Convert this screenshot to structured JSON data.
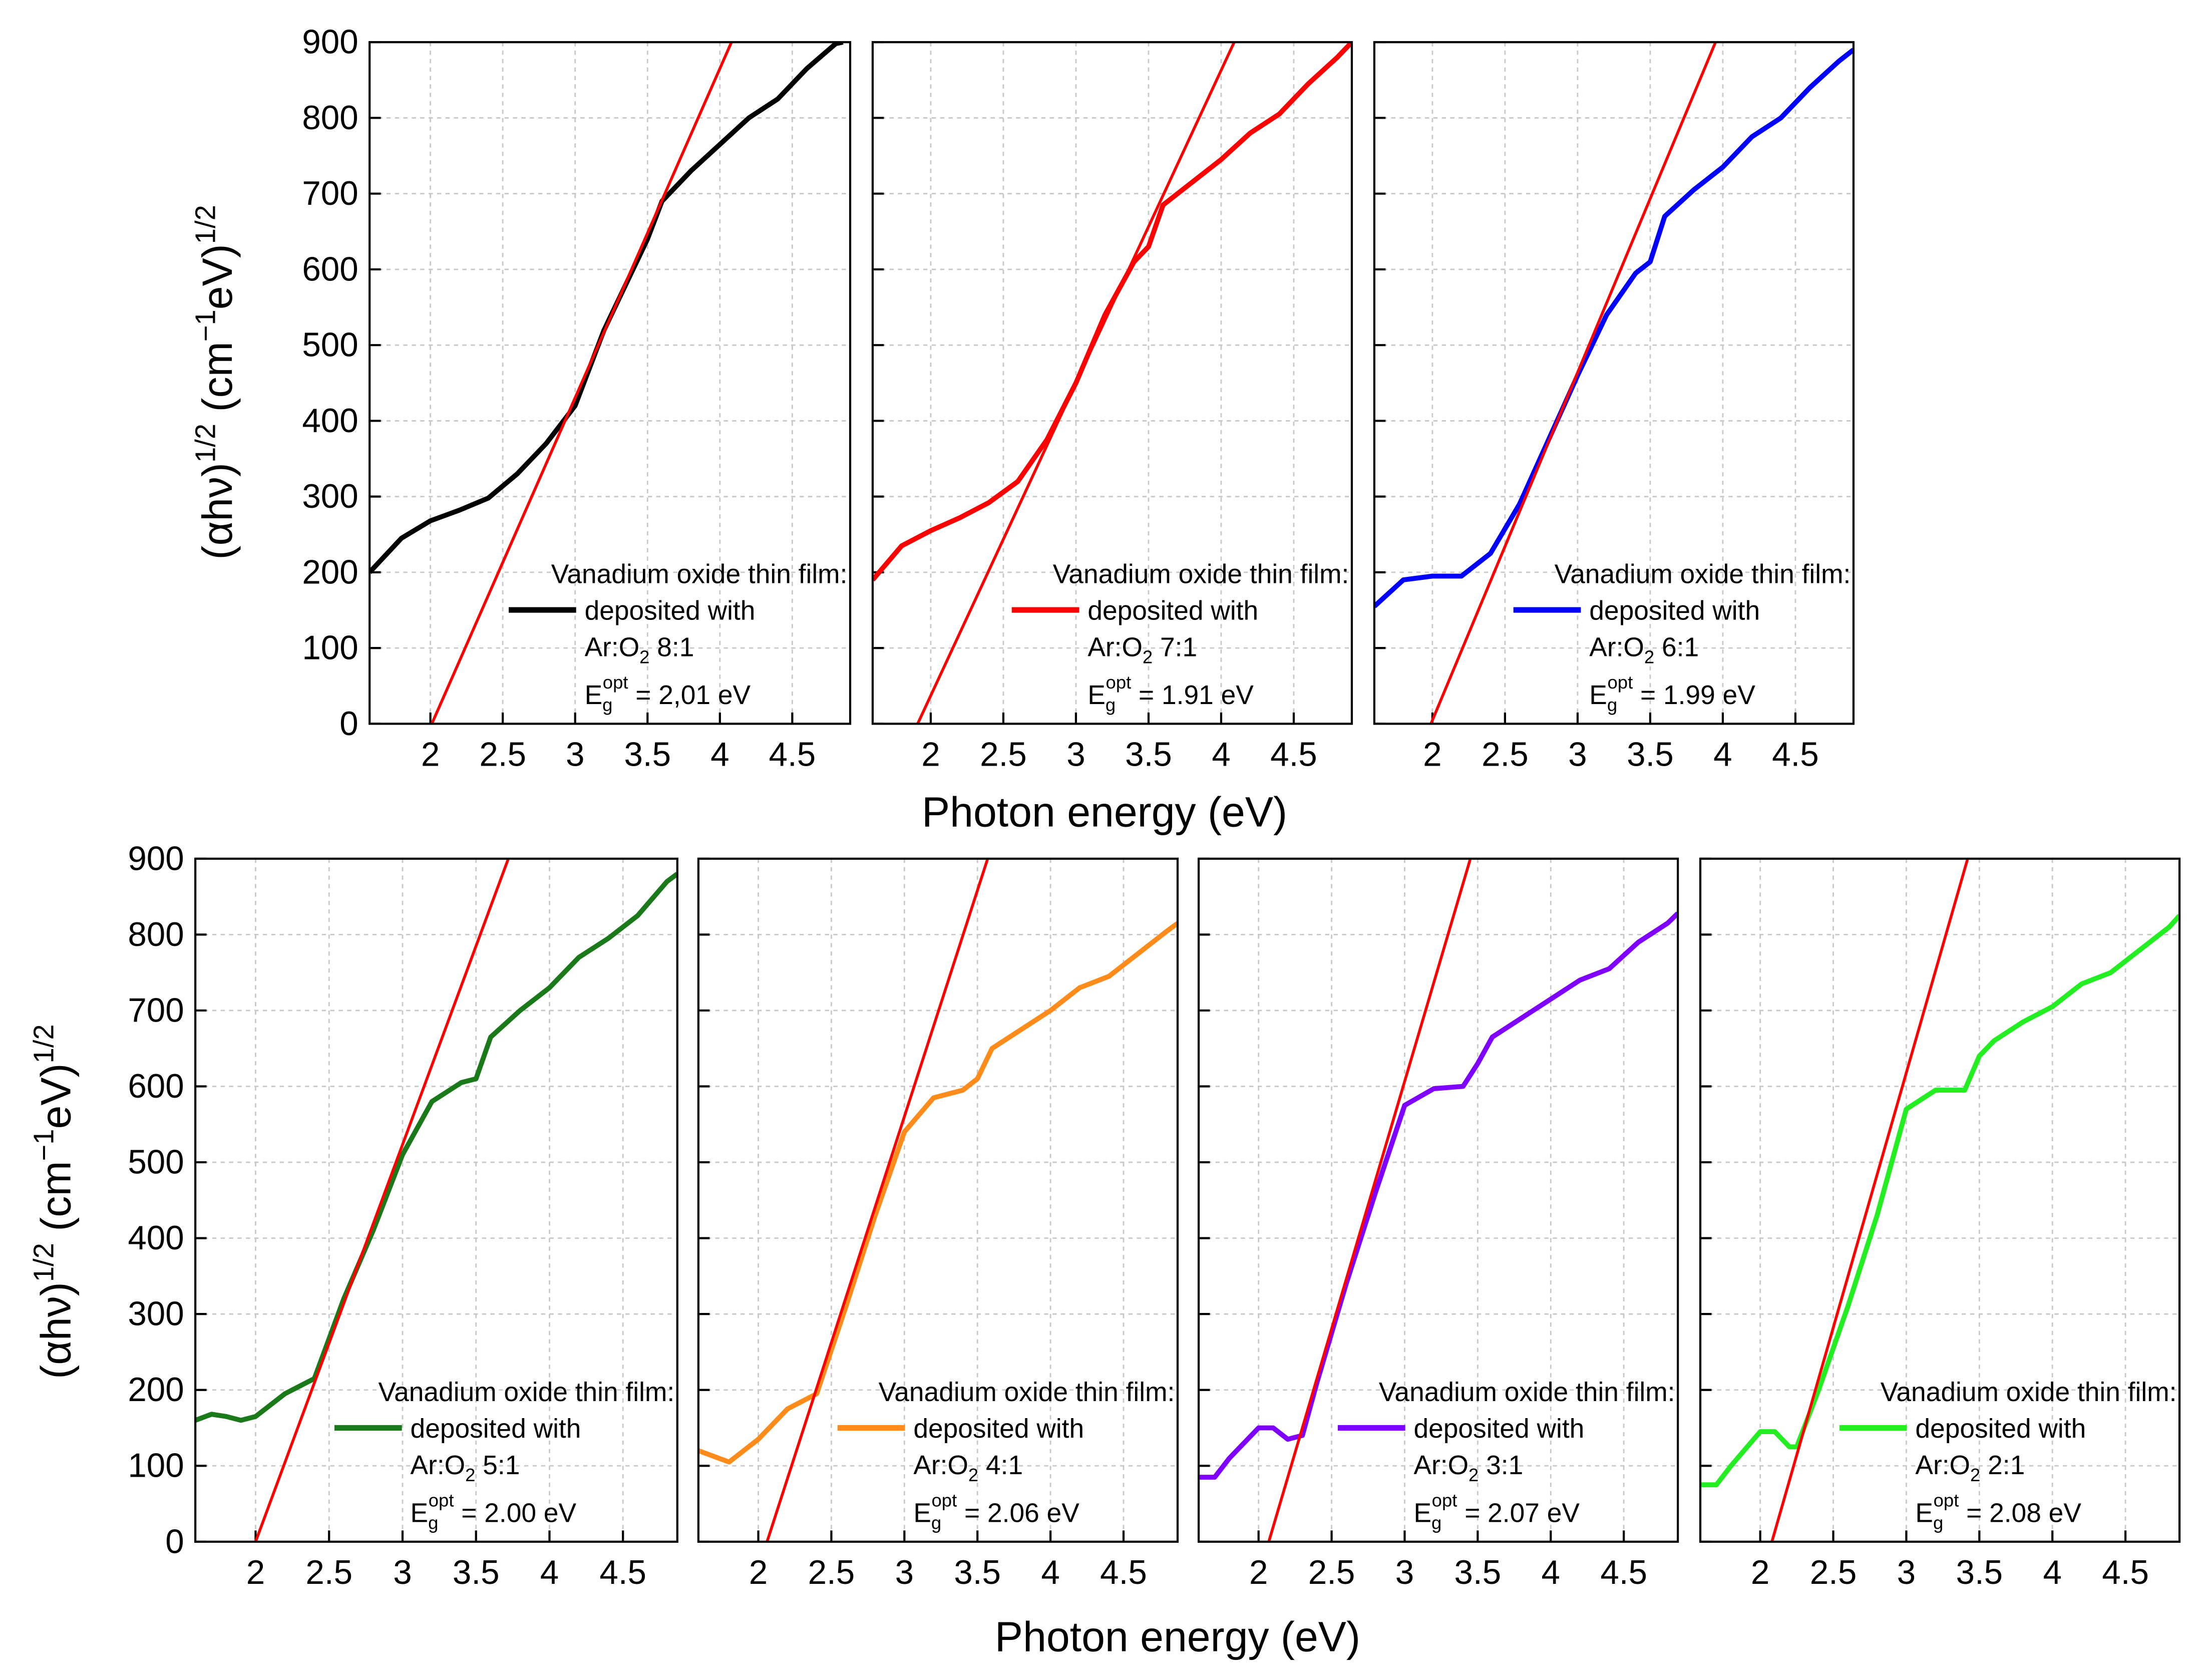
{
  "rows": [
    {
      "x_label": "Photon energy (eV)",
      "y_label": [
        "(αhν)",
        "1/2",
        " (cm",
        "−1",
        "eV)",
        "1/2"
      ]
    },
    {
      "x_label": "Photon energy (eV)",
      "y_label": [
        "(αhν)",
        "1/2",
        " (cm",
        "−1",
        "eV)",
        "1/2"
      ]
    }
  ],
  "chart_data": [
    {
      "type": "line",
      "xlim": [
        1.58,
        4.9
      ],
      "ylim": [
        0,
        900
      ],
      "xticks": [
        2,
        2.5,
        3,
        3.5,
        4,
        4.5
      ],
      "yticks": [
        0,
        100,
        200,
        300,
        400,
        500,
        600,
        700,
        800,
        900
      ],
      "ytick_labels": true,
      "grid": true,
      "series": [
        {
          "color": "#000000",
          "x": [
            1.58,
            1.8,
            2.0,
            2.2,
            2.4,
            2.6,
            2.8,
            3.0,
            3.2,
            3.4,
            3.5,
            3.6,
            3.8,
            4.0,
            4.2,
            4.4,
            4.6,
            4.8,
            4.85
          ],
          "values": [
            200,
            245,
            268,
            282,
            298,
            330,
            370,
            420,
            520,
            600,
            640,
            690,
            730,
            765,
            800,
            825,
            865,
            898,
            900
          ]
        },
        {
          "color": "#ff0000",
          "x": [
            2.01,
            4.08
          ],
          "values": [
            0,
            900
          ]
        }
      ],
      "legend_lines": [
        "Vanadium oxide thin film:",
        "deposited with",
        [
          "Ar:O",
          "2",
          " 8:1"
        ]
      ],
      "annotation": [
        "E",
        "g",
        "opt",
        " = 2,01 eV"
      ]
    },
    {
      "type": "line",
      "xlim": [
        1.6,
        4.9
      ],
      "ylim": [
        0,
        900
      ],
      "xticks": [
        2,
        2.5,
        3,
        3.5,
        4,
        4.5
      ],
      "yticks": [
        0,
        100,
        200,
        300,
        400,
        500,
        600,
        700,
        800,
        900
      ],
      "ytick_labels": false,
      "grid": true,
      "series": [
        {
          "color": "#ff0000",
          "x": [
            1.6,
            1.8,
            2.0,
            2.2,
            2.4,
            2.6,
            2.8,
            3.0,
            3.2,
            3.4,
            3.5,
            3.6,
            3.8,
            4.0,
            4.2,
            4.4,
            4.6,
            4.8,
            4.9
          ],
          "values": [
            190,
            235,
            255,
            272,
            292,
            320,
            375,
            450,
            540,
            610,
            630,
            685,
            715,
            745,
            780,
            805,
            845,
            880,
            900
          ]
        },
        {
          "color": "#ff0000",
          "x": [
            1.91,
            4.09
          ],
          "values": [
            0,
            900
          ]
        }
      ],
      "legend_lines": [
        "Vanadium oxide thin film:",
        "deposited with",
        [
          "Ar:O",
          "2",
          " 7:1"
        ]
      ],
      "annotation": [
        "E",
        "g",
        "opt",
        " = 1.91 eV"
      ]
    },
    {
      "type": "line",
      "xlim": [
        1.6,
        4.9
      ],
      "ylim": [
        0,
        900
      ],
      "xticks": [
        2,
        2.5,
        3,
        3.5,
        4,
        4.5
      ],
      "yticks": [
        0,
        100,
        200,
        300,
        400,
        500,
        600,
        700,
        800,
        900
      ],
      "ytick_labels": false,
      "grid": true,
      "series": [
        {
          "color": "#0000ff",
          "x": [
            1.6,
            1.8,
            2.0,
            2.2,
            2.4,
            2.6,
            2.8,
            3.0,
            3.2,
            3.4,
            3.5,
            3.6,
            3.8,
            4.0,
            4.2,
            4.4,
            4.6,
            4.8,
            4.9
          ],
          "values": [
            155,
            190,
            195,
            195,
            225,
            290,
            375,
            460,
            540,
            595,
            610,
            670,
            705,
            735,
            775,
            800,
            840,
            875,
            890
          ]
        },
        {
          "color": "#ff0000",
          "x": [
            1.99,
            3.95
          ],
          "values": [
            0,
            900
          ]
        }
      ],
      "legend_lines": [
        "Vanadium oxide thin film:",
        "deposited with",
        [
          "Ar:O",
          "2",
          " 6:1"
        ]
      ],
      "annotation": [
        "E",
        "g",
        "opt",
        " = 1.99 eV"
      ]
    },
    {
      "type": "line",
      "xlim": [
        1.59,
        4.87
      ],
      "ylim": [
        0,
        900
      ],
      "xticks": [
        2,
        2.5,
        3,
        3.5,
        4,
        4.5
      ],
      "yticks": [
        0,
        100,
        200,
        300,
        400,
        500,
        600,
        700,
        800,
        900
      ],
      "ytick_labels": true,
      "grid": true,
      "series": [
        {
          "color": "#1a7a1a",
          "x": [
            1.59,
            1.7,
            1.8,
            1.9,
            2.0,
            2.2,
            2.4,
            2.6,
            2.8,
            3.0,
            3.2,
            3.4,
            3.5,
            3.6,
            3.8,
            4.0,
            4.2,
            4.4,
            4.6,
            4.8,
            4.87
          ],
          "values": [
            160,
            168,
            165,
            160,
            165,
            195,
            215,
            320,
            410,
            510,
            580,
            605,
            610,
            665,
            700,
            730,
            770,
            795,
            825,
            870,
            880
          ]
        },
        {
          "color": "#ff0000",
          "x": [
            2.0,
            3.72
          ],
          "values": [
            0,
            900
          ]
        }
      ],
      "legend_lines": [
        "Vanadium oxide thin film:",
        "deposited with",
        [
          "Ar:O",
          "2",
          " 5:1"
        ]
      ],
      "annotation": [
        "E",
        "g",
        "opt",
        " = 2.00 eV"
      ]
    },
    {
      "type": "line",
      "xlim": [
        1.59,
        4.87
      ],
      "ylim": [
        0,
        900
      ],
      "xticks": [
        2,
        2.5,
        3,
        3.5,
        4,
        4.5
      ],
      "yticks": [
        0,
        100,
        200,
        300,
        400,
        500,
        600,
        700,
        800,
        900
      ],
      "ytick_labels": false,
      "grid": true,
      "series": [
        {
          "color": "#ff8c1a",
          "x": [
            1.59,
            1.8,
            2.0,
            2.2,
            2.4,
            2.6,
            2.8,
            3.0,
            3.2,
            3.4,
            3.5,
            3.6,
            3.8,
            4.0,
            4.2,
            4.4,
            4.6,
            4.8,
            4.87
          ],
          "values": [
            120,
            105,
            135,
            175,
            195,
            310,
            430,
            540,
            585,
            595,
            610,
            650,
            675,
            700,
            730,
            745,
            775,
            805,
            815
          ]
        },
        {
          "color": "#ff0000",
          "x": [
            2.06,
            3.57
          ],
          "values": [
            0,
            900
          ]
        }
      ],
      "legend_lines": [
        "Vanadium oxide thin film:",
        "deposited with",
        [
          "Ar:O",
          "2",
          " 4:1"
        ]
      ],
      "annotation": [
        "E",
        "g",
        "opt",
        " = 2.06 eV"
      ]
    },
    {
      "type": "line",
      "xlim": [
        1.59,
        4.87
      ],
      "ylim": [
        0,
        900
      ],
      "xticks": [
        2,
        2.5,
        3,
        3.5,
        4,
        4.5
      ],
      "yticks": [
        0,
        100,
        200,
        300,
        400,
        500,
        600,
        700,
        800,
        900
      ],
      "ytick_labels": false,
      "grid": true,
      "series": [
        {
          "color": "#8000ff",
          "x": [
            1.59,
            1.7,
            1.8,
            2.0,
            2.1,
            2.2,
            2.3,
            2.4,
            2.6,
            2.8,
            3.0,
            3.2,
            3.4,
            3.5,
            3.6,
            3.8,
            4.0,
            4.2,
            4.4,
            4.6,
            4.8,
            4.87
          ],
          "values": [
            85,
            85,
            110,
            150,
            150,
            135,
            140,
            210,
            340,
            460,
            575,
            597,
            600,
            630,
            665,
            690,
            715,
            740,
            755,
            790,
            815,
            828
          ]
        },
        {
          "color": "#ff0000",
          "x": [
            2.07,
            3.45
          ],
          "values": [
            0,
            900
          ]
        }
      ],
      "legend_lines": [
        "Vanadium oxide thin film:",
        "deposited with",
        [
          "Ar:O",
          "2",
          " 3:1"
        ]
      ],
      "annotation": [
        "E",
        "g",
        "opt",
        " = 2.07 eV"
      ]
    },
    {
      "type": "line",
      "xlim": [
        1.59,
        4.87
      ],
      "ylim": [
        0,
        900
      ],
      "xticks": [
        2,
        2.5,
        3,
        3.5,
        4,
        4.5
      ],
      "yticks": [
        0,
        100,
        200,
        300,
        400,
        500,
        600,
        700,
        800,
        900
      ],
      "ytick_labels": false,
      "grid": true,
      "series": [
        {
          "color": "#22ee22",
          "x": [
            1.59,
            1.7,
            1.8,
            2.0,
            2.1,
            2.2,
            2.25,
            2.4,
            2.6,
            2.8,
            3.0,
            3.2,
            3.4,
            3.5,
            3.6,
            3.8,
            4.0,
            4.2,
            4.4,
            4.6,
            4.8,
            4.87
          ],
          "values": [
            75,
            75,
            100,
            145,
            145,
            125,
            125,
            200,
            310,
            430,
            570,
            595,
            595,
            640,
            660,
            685,
            705,
            735,
            750,
            780,
            810,
            825
          ]
        },
        {
          "color": "#ff0000",
          "x": [
            2.08,
            3.42
          ],
          "values": [
            0,
            900
          ]
        }
      ],
      "legend_lines": [
        "Vanadium oxide thin film:",
        "deposited with",
        [
          "Ar:O",
          "2",
          " 2:1"
        ]
      ],
      "annotation": [
        "E",
        "g",
        "opt",
        " = 2.08 eV"
      ]
    }
  ]
}
